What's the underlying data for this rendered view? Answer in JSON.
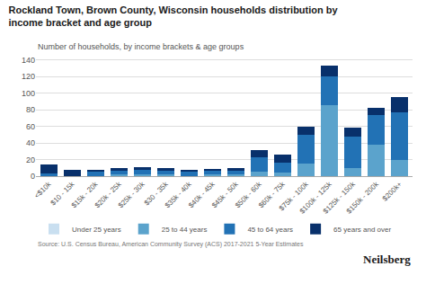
{
  "chart_data": {
    "type": "bar",
    "title": "Rockland Town, Brown County, Wisconsin households distribution by\nincome bracket and age group",
    "subtitle": "Number of households, by income brackets & age groups",
    "annotations": [
      "Source: U.S. Census Bureau, American Community Survey (ACS) 2017-2021 5-Year Estimates",
      "Neilsberg"
    ],
    "categories": [
      "<$10k",
      "$10 - 15k",
      "$15k - 20k",
      "$20k - 25k",
      "$25k - 30k",
      "$30 - 35k",
      "$35k - 40k",
      "$40k - 45k",
      "$45k - 50k",
      "$50k - 60k",
      "$60k - 75k",
      "$75k - 100k",
      "$100k - 125k",
      "$125k - 150k",
      "$150k - 200k",
      "$200k+"
    ],
    "series": [
      {
        "name": "Under 25 years",
        "color": "#c9dff0",
        "values": [
          0,
          0,
          0,
          0,
          0,
          0,
          0,
          0,
          0,
          0,
          0,
          0,
          0,
          0,
          0,
          0
        ]
      },
      {
        "name": "25 to 44 years",
        "color": "#5ba3cc",
        "values": [
          0,
          0,
          0,
          2,
          2,
          2,
          0,
          2,
          2,
          5,
          4,
          15,
          85,
          10,
          38,
          20
        ]
      },
      {
        "name": "45 to 64 years",
        "color": "#2272b5",
        "values": [
          3,
          0,
          5,
          5,
          6,
          5,
          5,
          4,
          5,
          18,
          12,
          35,
          35,
          38,
          36,
          57
        ]
      },
      {
        "name": "65 years and over",
        "color": "#08306b",
        "values": [
          11,
          8,
          3,
          3,
          3,
          3,
          3,
          3,
          3,
          8,
          10,
          9,
          13,
          10,
          8,
          18
        ]
      }
    ],
    "stacked": true,
    "ylim": [
      0,
      145
    ],
    "yticks": [
      0,
      20,
      40,
      60,
      80,
      100,
      120,
      140
    ],
    "grid": true,
    "legend": "bottom"
  }
}
